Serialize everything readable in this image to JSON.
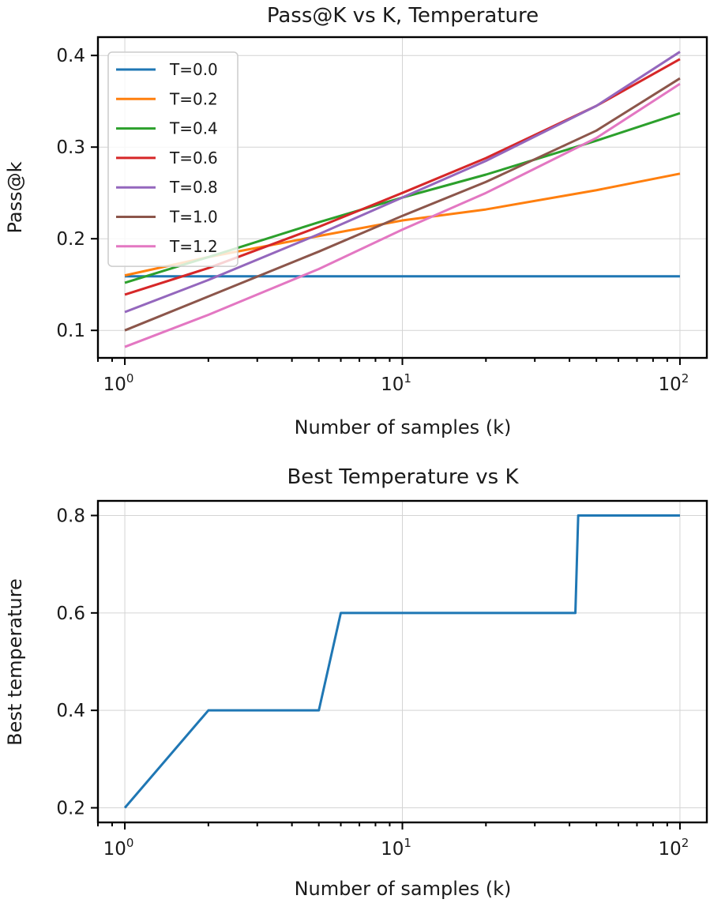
{
  "chart_data": [
    {
      "type": "line",
      "title": "Pass@K vs K, Temperature",
      "xlabel": "Number of samples (k)",
      "ylabel": "Pass@k",
      "xscale": "log",
      "xlim": [
        0.8,
        125
      ],
      "ylim": [
        0.07,
        0.42
      ],
      "x_ticks": [
        1,
        10,
        100
      ],
      "x_tick_labels": [
        {
          "base": "10",
          "exp": "0"
        },
        {
          "base": "10",
          "exp": "1"
        },
        {
          "base": "10",
          "exp": "2"
        }
      ],
      "y_ticks": [
        0.1,
        0.2,
        0.3,
        0.4
      ],
      "y_tick_labels": [
        "0.1",
        "0.2",
        "0.3",
        "0.4"
      ],
      "grid": true,
      "legend_position": "upper-left",
      "series": [
        {
          "name": "T=0.0",
          "color": "#1f77b4",
          "x": [
            1,
            2,
            5,
            10,
            20,
            50,
            100
          ],
          "y": [
            0.159,
            0.159,
            0.159,
            0.159,
            0.159,
            0.159,
            0.159
          ]
        },
        {
          "name": "T=0.2",
          "color": "#ff7f0e",
          "x": [
            1,
            2,
            5,
            10,
            20,
            50,
            100
          ],
          "y": [
            0.16,
            0.18,
            0.203,
            0.22,
            0.232,
            0.253,
            0.271
          ]
        },
        {
          "name": "T=0.4",
          "color": "#2ca02c",
          "x": [
            1,
            2,
            5,
            10,
            20,
            50,
            100
          ],
          "y": [
            0.152,
            0.18,
            0.218,
            0.245,
            0.27,
            0.307,
            0.337
          ]
        },
        {
          "name": "T=0.6",
          "color": "#d62728",
          "x": [
            1,
            2,
            5,
            10,
            20,
            50,
            100
          ],
          "y": [
            0.139,
            0.168,
            0.213,
            0.25,
            0.288,
            0.345,
            0.396
          ]
        },
        {
          "name": "T=0.8",
          "color": "#9467bd",
          "x": [
            1,
            2,
            5,
            10,
            20,
            50,
            100
          ],
          "y": [
            0.12,
            0.155,
            0.205,
            0.245,
            0.285,
            0.345,
            0.404
          ]
        },
        {
          "name": "T=1.0",
          "color": "#8c564b",
          "x": [
            1,
            2,
            5,
            10,
            20,
            50,
            100
          ],
          "y": [
            0.1,
            0.137,
            0.186,
            0.225,
            0.262,
            0.318,
            0.375
          ]
        },
        {
          "name": "T=1.2",
          "color": "#e377c2",
          "x": [
            1,
            2,
            5,
            10,
            20,
            50,
            100
          ],
          "y": [
            0.082,
            0.117,
            0.167,
            0.21,
            0.25,
            0.31,
            0.369
          ]
        }
      ]
    },
    {
      "type": "line",
      "title": "Best Temperature vs K",
      "xlabel": "Number of samples (k)",
      "ylabel": "Best temperature",
      "xscale": "log",
      "xlim": [
        0.8,
        125
      ],
      "ylim": [
        0.17,
        0.83
      ],
      "x_ticks": [
        1,
        10,
        100
      ],
      "x_tick_labels": [
        {
          "base": "10",
          "exp": "0"
        },
        {
          "base": "10",
          "exp": "1"
        },
        {
          "base": "10",
          "exp": "2"
        }
      ],
      "y_ticks": [
        0.2,
        0.4,
        0.6,
        0.8
      ],
      "y_tick_labels": [
        "0.2",
        "0.4",
        "0.6",
        "0.8"
      ],
      "grid": true,
      "series": [
        {
          "color": "#1f77b4",
          "x": [
            1,
            2,
            5,
            6,
            42,
            43,
            100
          ],
          "y": [
            0.2,
            0.4,
            0.4,
            0.6,
            0.6,
            0.8,
            0.8
          ]
        }
      ]
    }
  ]
}
